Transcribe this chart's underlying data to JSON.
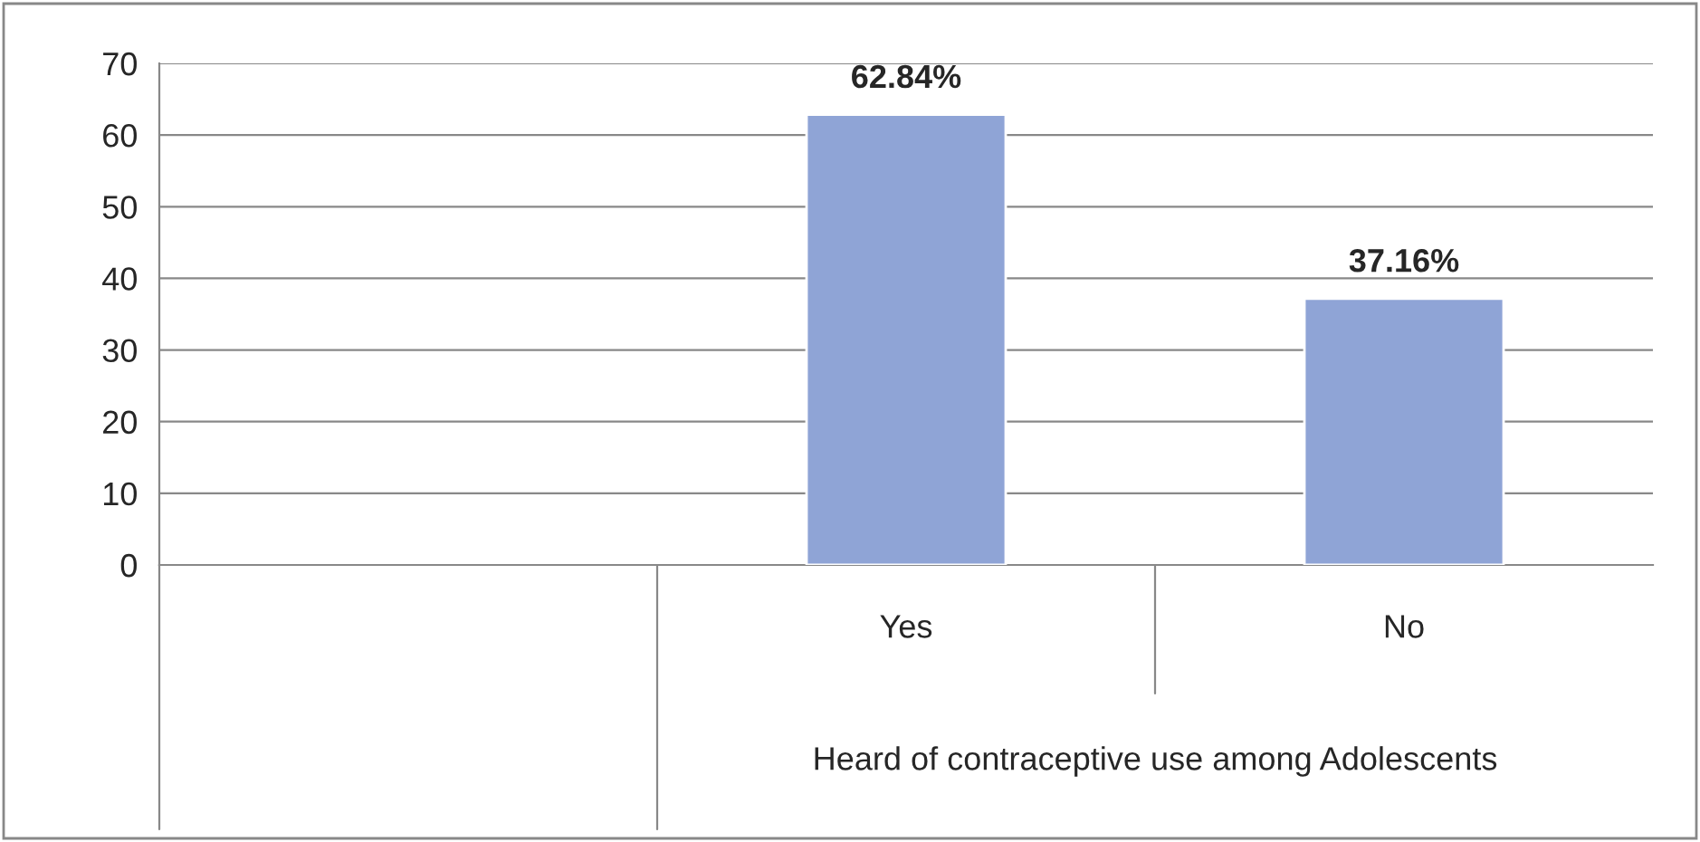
{
  "chart_data": {
    "type": "bar",
    "categories": [
      null,
      "Yes",
      "No"
    ],
    "values": [
      null,
      62.84,
      37.16
    ],
    "value_labels": [
      null,
      "62.84%",
      "37.16%"
    ],
    "color": "#8fa4d6",
    "xlabel": "Heard of contraceptive use among Adolescents",
    "ylim": [
      0,
      70
    ],
    "yticks": [
      0,
      10,
      20,
      30,
      40,
      50,
      60,
      70
    ],
    "grid": "y",
    "legend": false
  }
}
